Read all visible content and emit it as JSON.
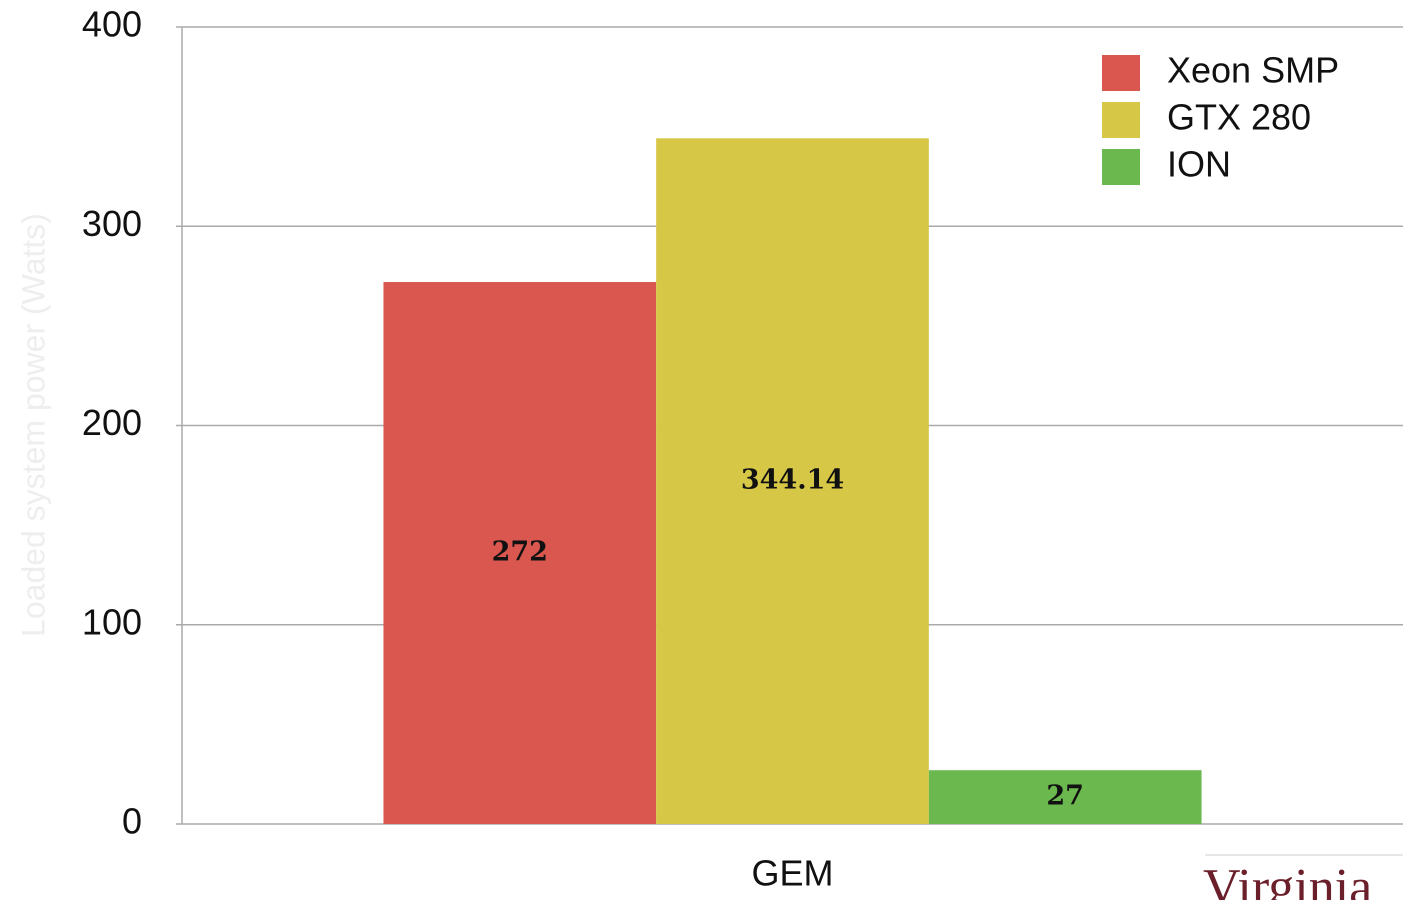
{
  "chart_data": {
    "type": "bar",
    "y_label": "Loaded system power (Watts)",
    "categories": [
      "GEM"
    ],
    "series": [
      {
        "name": "Xeon SMP",
        "color": "#d9574f",
        "values": [
          272
        ],
        "value_labels": [
          "272"
        ]
      },
      {
        "name": "GTX 280",
        "color": "#d6c846",
        "values": [
          344.14
        ],
        "value_labels": [
          "344.14"
        ]
      },
      {
        "name": "ION",
        "color": "#6ab84e",
        "values": [
          27
        ],
        "value_labels": [
          "27"
        ]
      }
    ],
    "ylim": [
      0,
      400
    ],
    "yticks": [
      0,
      100,
      200,
      300,
      400
    ],
    "grid": true,
    "legend": "top-right",
    "annotation": "Virginia"
  }
}
